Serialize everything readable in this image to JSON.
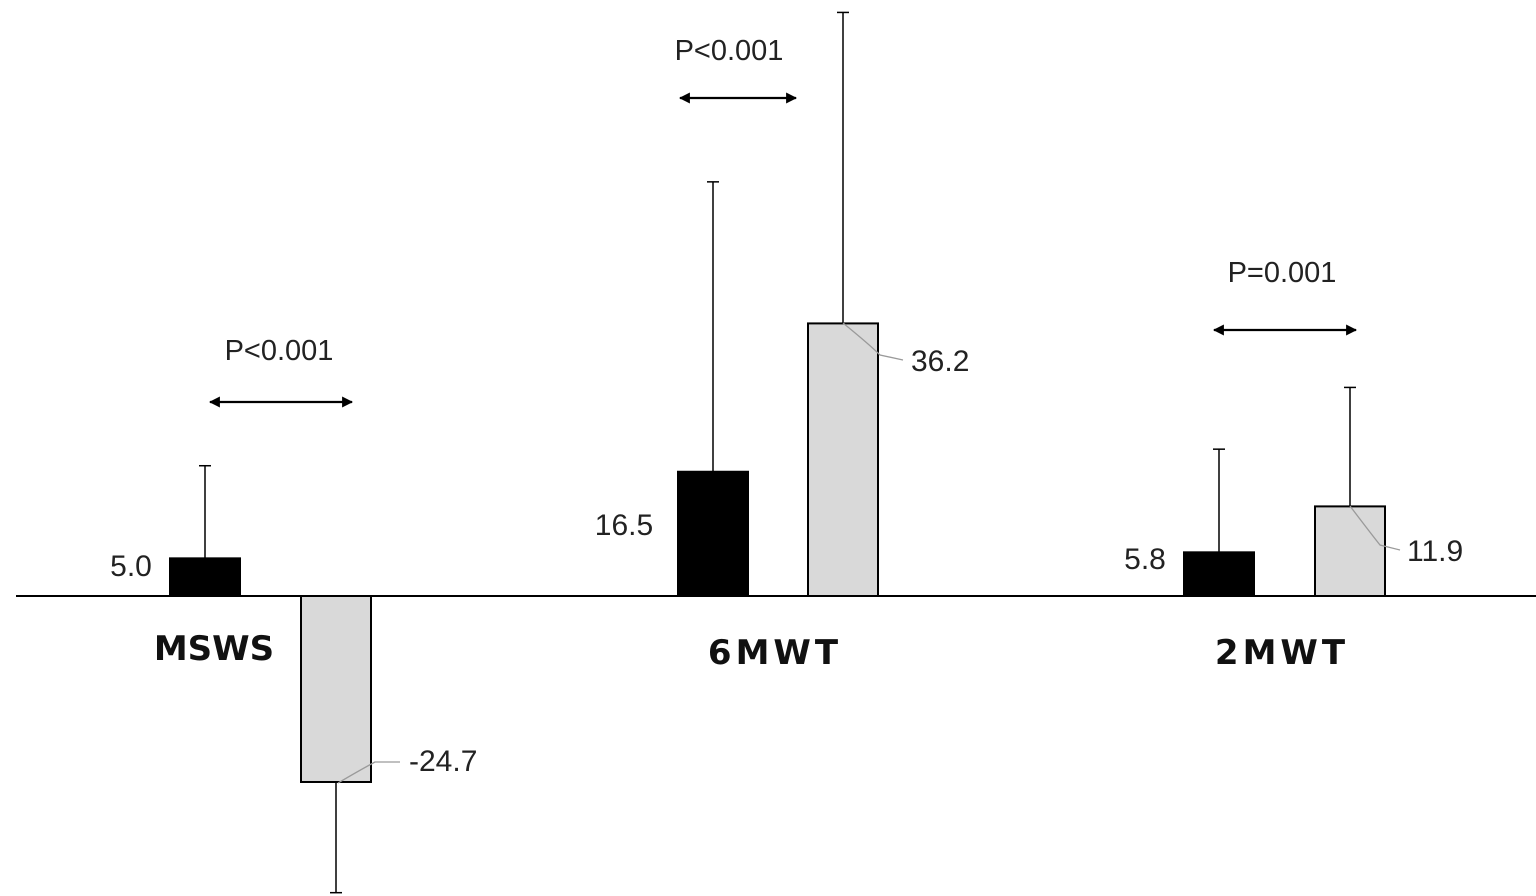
{
  "chart_data": {
    "type": "bar",
    "categories": [
      "MSWS",
      "6MWT",
      "2MWT"
    ],
    "series": [
      {
        "values": [
          5.0,
          16.5,
          5.8
        ],
        "error_upper": [
          17.3,
          55.0,
          19.5
        ],
        "color": "#000000"
      },
      {
        "values": [
          -24.7,
          36.2,
          11.9
        ],
        "error_lower": [
          -39.4,
          null,
          null
        ],
        "error_upper": [
          null,
          77.5,
          27.7
        ],
        "color": "#d9d9d9"
      }
    ],
    "value_labels": [
      [
        "5.0",
        "16.5",
        "5.8"
      ],
      [
        "-24.7",
        "36.2",
        "11.9"
      ]
    ],
    "comparisons": [
      "P<0.001",
      "P<0.001",
      "P=0.001"
    ],
    "title": "",
    "xlabel": "",
    "ylabel": "",
    "ylim": [
      -39.5,
      77.5
    ],
    "grid": false,
    "legend": "none"
  }
}
